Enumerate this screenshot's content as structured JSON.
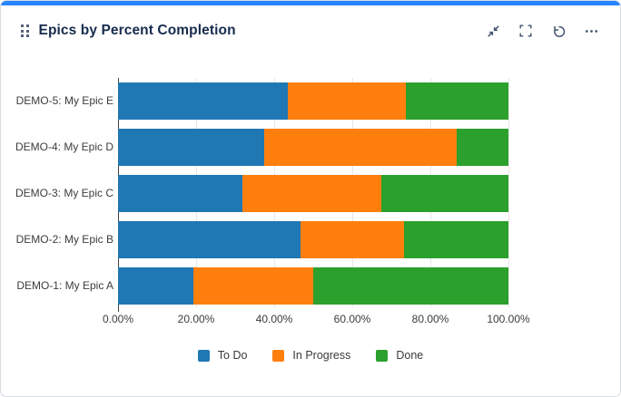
{
  "header": {
    "title": "Epics by Percent Completion"
  },
  "colors": {
    "top_accent": "#2684ff",
    "title_text": "#172b4d",
    "icon": "#44546f",
    "axis_line": "#424242",
    "gridline": "#e7e7e7"
  },
  "chart_data": {
    "type": "bar",
    "orientation": "horizontal",
    "stacked": true,
    "title": "Epics by Percent Completion",
    "categories": [
      "DEMO-5: My Epic E",
      "DEMO-4: My Epic D",
      "DEMO-3: My Epic C",
      "DEMO-2: My Epic B",
      "DEMO-1: My Epic A"
    ],
    "series": [
      {
        "name": "To Do",
        "color": "#1f77b4",
        "values": [
          43.5,
          37.4,
          31.9,
          46.7,
          19.3
        ]
      },
      {
        "name": "In Progress",
        "color": "#ff7f0e",
        "values": [
          30.2,
          49.3,
          35.5,
          26.6,
          30.7
        ]
      },
      {
        "name": "Done",
        "color": "#2ca02c",
        "values": [
          26.3,
          13.3,
          32.6,
          26.7,
          50.0
        ]
      }
    ],
    "x_ticks": [
      "0.00%",
      "20.00%",
      "40.00%",
      "60.00%",
      "80.00%",
      "100.00%"
    ],
    "xlim": [
      0,
      100
    ],
    "grid": true,
    "legend_position": "bottom"
  }
}
